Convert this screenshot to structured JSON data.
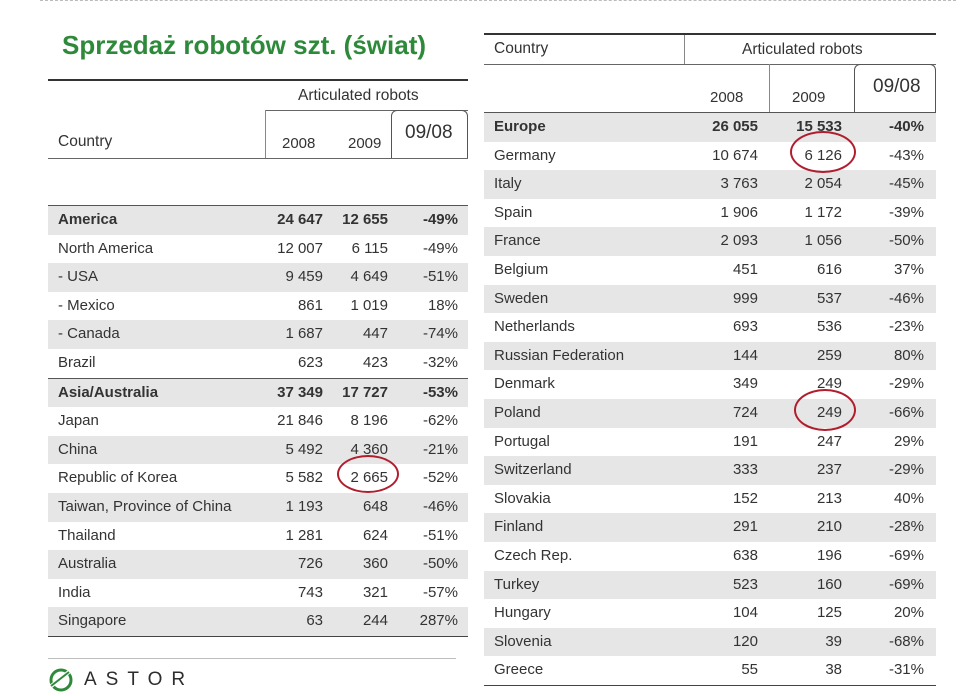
{
  "title": "Sprzedaż robotów szt. (świat)",
  "colors": {
    "title": "#2e8a3a",
    "circle": "#b01e2e",
    "row_alt": "#e6e6e6"
  },
  "left_table": {
    "group_label": "Articulated robots",
    "country_label": "Country",
    "col_2008": "2008",
    "col_2009": "2009",
    "col_change": "09/08",
    "rows": [
      {
        "name": "America",
        "y2008": "24 647",
        "y2009": "12 655",
        "change": "-49%",
        "bold": true
      },
      {
        "name": "North America",
        "y2008": "12 007",
        "y2009": "6 115",
        "change": "-49%"
      },
      {
        "name": "- USA",
        "y2008": "9 459",
        "y2009": "4 649",
        "change": "-51%"
      },
      {
        "name": "- Mexico",
        "y2008": "861",
        "y2009": "1 019",
        "change": "18%"
      },
      {
        "name": "- Canada",
        "y2008": "1 687",
        "y2009": "447",
        "change": "-74%"
      },
      {
        "name": "Brazil",
        "y2008": "623",
        "y2009": "423",
        "change": "-32%"
      },
      {
        "name": "Asia/Australia",
        "y2008": "37 349",
        "y2009": "17 727",
        "change": "-53%",
        "bold": true
      },
      {
        "name": "Japan",
        "y2008": "21 846",
        "y2009": "8 196",
        "change": "-62%"
      },
      {
        "name": "China",
        "y2008": "5 492",
        "y2009": "4 360",
        "change": "-21%"
      },
      {
        "name": "Republic of Korea",
        "y2008": "5 582",
        "y2009": "2 665",
        "change": "-52%"
      },
      {
        "name": "Taiwan, Province of  China",
        "y2008": "1 193",
        "y2009": "648",
        "change": "-46%"
      },
      {
        "name": "Thailand",
        "y2008": "1 281",
        "y2009": "624",
        "change": "-51%"
      },
      {
        "name": "Australia",
        "y2008": "726",
        "y2009": "360",
        "change": "-50%"
      },
      {
        "name": "India",
        "y2008": "743",
        "y2009": "321",
        "change": "-57%"
      },
      {
        "name": "Singapore",
        "y2008": "63",
        "y2009": "244",
        "change": "287%"
      }
    ]
  },
  "right_table": {
    "country_label": "Country",
    "group_label": "Articulated robots",
    "col_2008": "2008",
    "col_2009": "2009",
    "col_change": "09/08",
    "rows": [
      {
        "name": "Europe",
        "y2008": "26 055",
        "y2009": "15 533",
        "change": "-40%",
        "bold": true
      },
      {
        "name": "Germany",
        "y2008": "10 674",
        "y2009": "6 126",
        "change": "-43%"
      },
      {
        "name": "Italy",
        "y2008": "3 763",
        "y2009": "2 054",
        "change": "-45%"
      },
      {
        "name": "Spain",
        "y2008": "1 906",
        "y2009": "1 172",
        "change": "-39%"
      },
      {
        "name": "France",
        "y2008": "2 093",
        "y2009": "1 056",
        "change": "-50%"
      },
      {
        "name": "Belgium",
        "y2008": "451",
        "y2009": "616",
        "change": "37%"
      },
      {
        "name": "Sweden",
        "y2008": "999",
        "y2009": "537",
        "change": "-46%"
      },
      {
        "name": "Netherlands",
        "y2008": "693",
        "y2009": "536",
        "change": "-23%"
      },
      {
        "name": "Russian Federation",
        "y2008": "144",
        "y2009": "259",
        "change": "80%"
      },
      {
        "name": "Denmark",
        "y2008": "349",
        "y2009": "249",
        "change": "-29%"
      },
      {
        "name": "Poland",
        "y2008": "724",
        "y2009": "249",
        "change": "-66%"
      },
      {
        "name": "Portugal",
        "y2008": "191",
        "y2009": "247",
        "change": "29%"
      },
      {
        "name": "Switzerland",
        "y2008": "333",
        "y2009": "237",
        "change": "-29%"
      },
      {
        "name": "Slovakia",
        "y2008": "152",
        "y2009": "213",
        "change": "40%"
      },
      {
        "name": "Finland",
        "y2008": "291",
        "y2009": "210",
        "change": "-28%"
      },
      {
        "name": "Czech Rep.",
        "y2008": "638",
        "y2009": "196",
        "change": "-69%"
      },
      {
        "name": "Turkey",
        "y2008": "523",
        "y2009": "160",
        "change": "-69%"
      },
      {
        "name": "Hungary",
        "y2008": "104",
        "y2009": "125",
        "change": "20%"
      },
      {
        "name": "Slovenia",
        "y2008": "120",
        "y2009": "39",
        "change": "-68%"
      },
      {
        "name": "Greece",
        "y2008": "55",
        "y2009": "38",
        "change": "-31%"
      }
    ]
  },
  "logo": {
    "text": "ASTOR"
  }
}
